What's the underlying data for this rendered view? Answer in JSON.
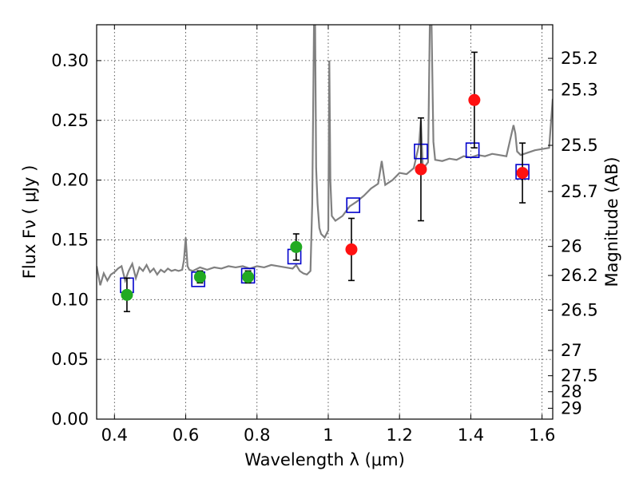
{
  "chart_data": {
    "type": "scatter",
    "xlabel": "Wavelength  λ (μm)",
    "ylabel": "Flux  Fν  ( μJy )",
    "ylabel_right": "Magnitude (AB)",
    "xlim": [
      0.35,
      1.63
    ],
    "ylim": [
      0.0,
      0.33
    ],
    "grid": true,
    "x_ticks": [
      {
        "value": 0.4,
        "label": "0.4"
      },
      {
        "value": 0.6,
        "label": "0.6"
      },
      {
        "value": 0.8,
        "label": "0.8"
      },
      {
        "value": 1.0,
        "label": "1"
      },
      {
        "value": 1.2,
        "label": "1.2"
      },
      {
        "value": 1.4,
        "label": "1.4"
      },
      {
        "value": 1.6,
        "label": "1.6"
      }
    ],
    "y_ticks": [
      {
        "value": 0.0,
        "label": "0.00"
      },
      {
        "value": 0.05,
        "label": "0.05"
      },
      {
        "value": 0.1,
        "label": "0.10"
      },
      {
        "value": 0.15,
        "label": "0.15"
      },
      {
        "value": 0.2,
        "label": "0.20"
      },
      {
        "value": 0.25,
        "label": "0.25"
      },
      {
        "value": 0.3,
        "label": "0.30"
      }
    ],
    "right_ticks": [
      {
        "label": "25.2",
        "flux": 0.3019
      },
      {
        "label": "25.3",
        "flux": 0.2754
      },
      {
        "label": "25.5",
        "flux": 0.2291
      },
      {
        "label": "25.7",
        "flux": 0.1905
      },
      {
        "label": "26",
        "flux": 0.1445
      },
      {
        "label": "26.2",
        "flux": 0.1202
      },
      {
        "label": "26.5",
        "flux": 0.0912
      },
      {
        "label": "27",
        "flux": 0.0575
      },
      {
        "label": "27.5",
        "flux": 0.0363
      },
      {
        "label": "28",
        "flux": 0.0229
      },
      {
        "label": "29",
        "flux": 0.0091
      }
    ],
    "series": [
      {
        "kind": "model_spectrum",
        "color": "#808080",
        "x": [
          0.35,
          0.36,
          0.37,
          0.38,
          0.39,
          0.4,
          0.41,
          0.42,
          0.43,
          0.44,
          0.45,
          0.46,
          0.47,
          0.48,
          0.49,
          0.5,
          0.51,
          0.52,
          0.53,
          0.54,
          0.55,
          0.56,
          0.57,
          0.58,
          0.59,
          0.595,
          0.6,
          0.605,
          0.61,
          0.62,
          0.64,
          0.66,
          0.68,
          0.7,
          0.72,
          0.74,
          0.76,
          0.78,
          0.8,
          0.82,
          0.84,
          0.86,
          0.88,
          0.9,
          0.91,
          0.92,
          0.93,
          0.94,
          0.95,
          0.955,
          0.96,
          0.963,
          0.966,
          0.97,
          0.975,
          0.98,
          0.99,
          1.0,
          1.003,
          1.006,
          1.01,
          1.02,
          1.04,
          1.06,
          1.08,
          1.1,
          1.12,
          1.14,
          1.15,
          1.16,
          1.18,
          1.2,
          1.22,
          1.24,
          1.255,
          1.26,
          1.265,
          1.27,
          1.28,
          1.285,
          1.29,
          1.295,
          1.3,
          1.32,
          1.34,
          1.36,
          1.38,
          1.4,
          1.42,
          1.44,
          1.46,
          1.48,
          1.5,
          1.52,
          1.525,
          1.53,
          1.54,
          1.56,
          1.58,
          1.6,
          1.62,
          1.63
        ],
        "y": [
          0.128,
          0.112,
          0.122,
          0.116,
          0.121,
          0.123,
          0.126,
          0.128,
          0.116,
          0.124,
          0.13,
          0.118,
          0.127,
          0.124,
          0.129,
          0.123,
          0.126,
          0.121,
          0.125,
          0.123,
          0.126,
          0.124,
          0.125,
          0.124,
          0.125,
          0.133,
          0.152,
          0.128,
          0.125,
          0.124,
          0.127,
          0.125,
          0.127,
          0.126,
          0.128,
          0.127,
          0.128,
          0.126,
          0.128,
          0.127,
          0.129,
          0.128,
          0.127,
          0.126,
          0.129,
          0.124,
          0.122,
          0.121,
          0.124,
          0.18,
          0.33,
          0.33,
          0.21,
          0.18,
          0.16,
          0.155,
          0.152,
          0.158,
          0.3,
          0.2,
          0.17,
          0.166,
          0.17,
          0.178,
          0.182,
          0.187,
          0.193,
          0.197,
          0.216,
          0.196,
          0.2,
          0.206,
          0.205,
          0.21,
          0.23,
          0.25,
          0.212,
          0.211,
          0.215,
          0.33,
          0.33,
          0.232,
          0.217,
          0.216,
          0.218,
          0.217,
          0.22,
          0.219,
          0.221,
          0.22,
          0.222,
          0.221,
          0.22,
          0.246,
          0.239,
          0.224,
          0.221,
          0.223,
          0.225,
          0.226,
          0.227,
          0.268
        ]
      },
      {
        "kind": "model_photometry",
        "marker": "open-square",
        "color": "#0000cc",
        "x": [
          0.435,
          0.635,
          0.775,
          0.905,
          1.07,
          1.26,
          1.405,
          1.545
        ],
        "y": [
          0.112,
          0.117,
          0.12,
          0.136,
          0.179,
          0.224,
          0.225,
          0.207
        ]
      },
      {
        "kind": "observed_optical",
        "marker": "filled-circle",
        "color": "#22aa22",
        "x": [
          0.435,
          0.64,
          0.775,
          0.91
        ],
        "y": [
          0.104,
          0.119,
          0.119,
          0.144
        ],
        "yerr": [
          0.014,
          0.005,
          0.005,
          0.011
        ]
      },
      {
        "kind": "observed_nir",
        "marker": "filled-circle",
        "color": "#ff1111",
        "x": [
          1.065,
          1.26,
          1.41,
          1.545
        ],
        "y": [
          0.142,
          0.209,
          0.267,
          0.206
        ],
        "yerr": [
          0.026,
          0.043,
          0.04,
          0.025
        ]
      }
    ]
  }
}
